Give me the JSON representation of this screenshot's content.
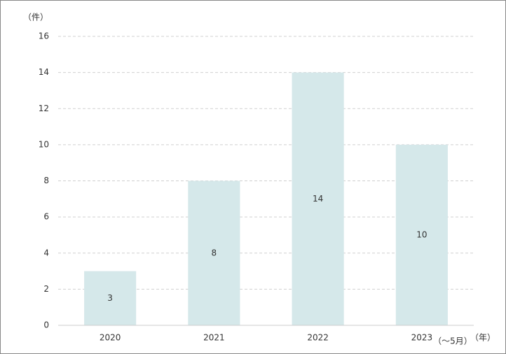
{
  "chart_data": {
    "type": "bar",
    "y_unit": "（件）",
    "x_unit": "（年）",
    "annotation": "（～5月）",
    "categories": [
      "2020",
      "2021",
      "2022",
      "2023"
    ],
    "values": [
      3,
      8,
      14,
      10
    ],
    "color": "#d5e8ea",
    "ylim": [
      0,
      16
    ],
    "yticks": [
      0,
      2,
      4,
      6,
      8,
      10,
      12,
      14,
      16
    ],
    "grid": true
  }
}
